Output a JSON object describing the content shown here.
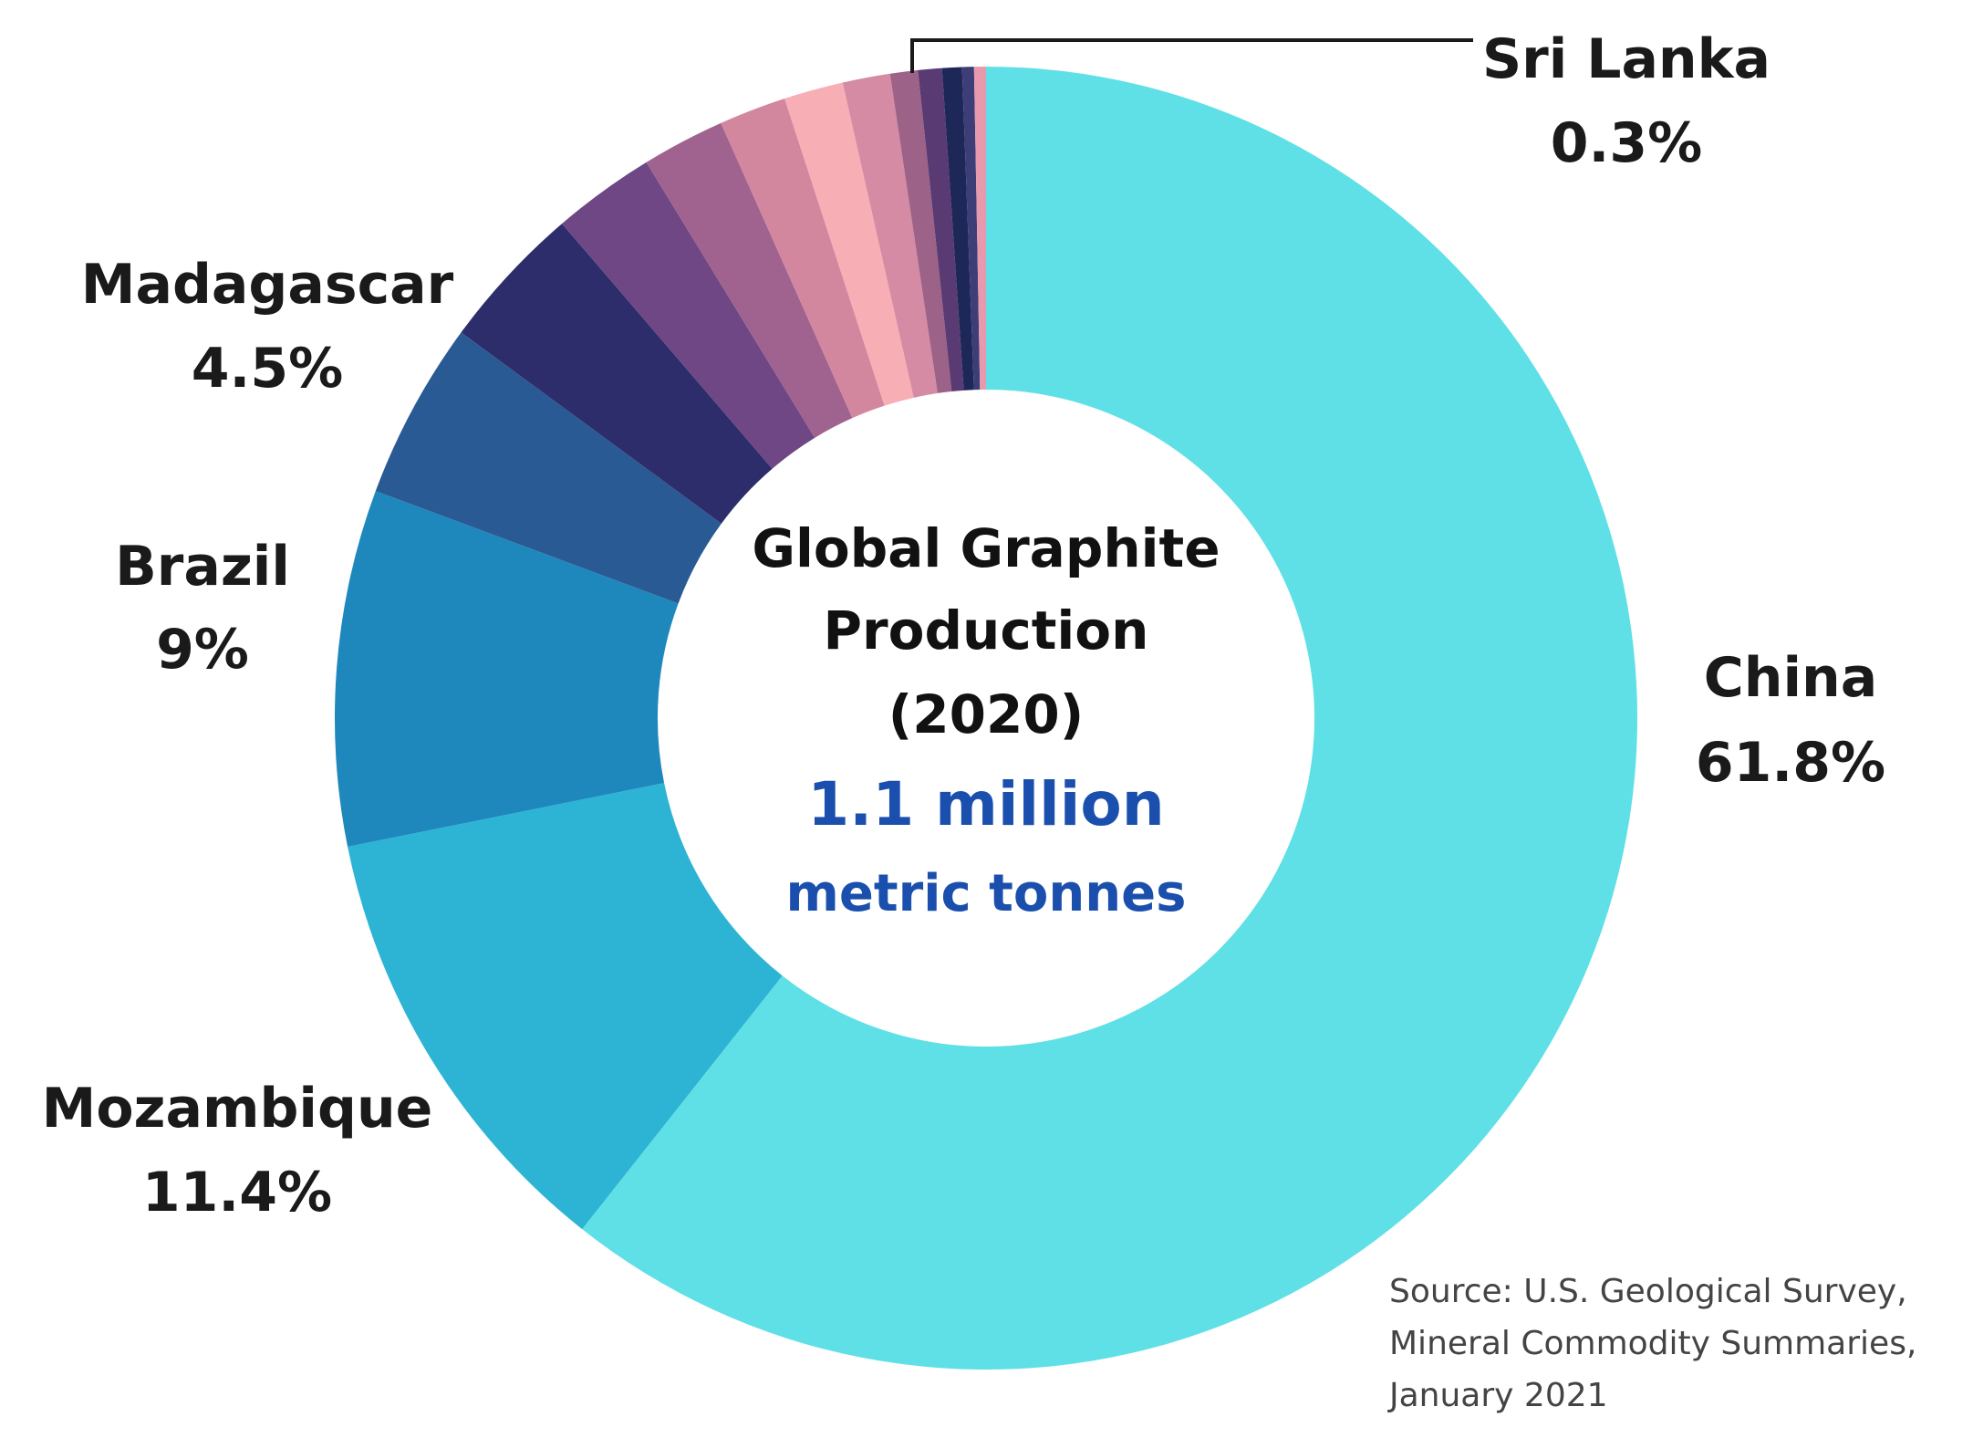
{
  "chart_data": {
    "type": "pie",
    "center_text": {
      "title_lines": [
        "Global Graphite",
        "Production",
        "(2020)"
      ],
      "value": "1.1 million",
      "unit": "metric tonnes"
    },
    "slices": [
      {
        "value": 61.8,
        "color": "#5fe0e6"
      },
      {
        "value": 11.4,
        "color": "#2db4d4"
      },
      {
        "value": 9.0,
        "color": "#1e88bd"
      },
      {
        "value": 4.5,
        "color": "#2a5a94"
      },
      {
        "value": 3.7,
        "color": "#2d2d6b"
      },
      {
        "value": 2.6,
        "color": "#6e4784"
      },
      {
        "value": 2.1,
        "color": "#a0628f"
      },
      {
        "value": 1.7,
        "color": "#d3879f"
      },
      {
        "value": 1.5,
        "color": "#f8aeb5"
      },
      {
        "value": 1.2,
        "color": "#d48ba3"
      },
      {
        "value": 0.7,
        "color": "#9c6288"
      },
      {
        "value": 0.6,
        "color": "#5a3a72"
      },
      {
        "value": 0.5,
        "color": "#1e2858"
      },
      {
        "value": 0.3,
        "color": "#3d3d78"
      },
      {
        "value": 0.3,
        "color": "#e79aae"
      }
    ],
    "labels": [
      {
        "name": "China",
        "pct": "61.8%"
      },
      {
        "name": "Mozambique",
        "pct": "11.4%"
      },
      {
        "name": "Brazil",
        "pct": "9%"
      },
      {
        "name": "Madagascar",
        "pct": "4.5%"
      },
      {
        "name": "Sri Lanka",
        "pct": "0.3%"
      }
    ],
    "colors": {
      "center_value": "#1b4fae",
      "text": "#1a1a1a",
      "leader_line": "#1a1a1a"
    }
  },
  "source": {
    "lines": [
      "Source: U.S. Geological Survey,",
      "Mineral Commodity Summaries,",
      "January 2021"
    ]
  }
}
